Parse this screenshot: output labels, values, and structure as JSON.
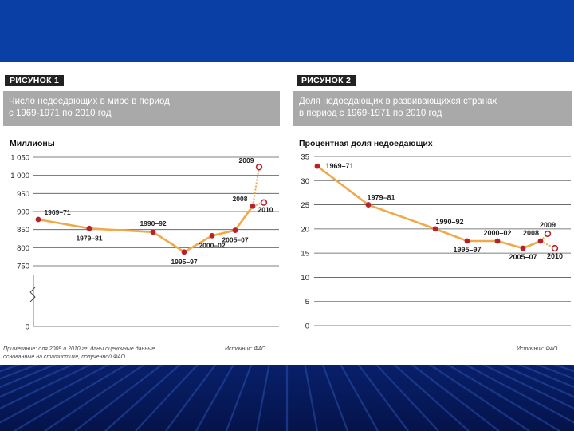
{
  "colors": {
    "top_band": "#0a3fa6",
    "bottom_band": "#05134a",
    "header_gray": "#a9a9a9",
    "line": "#f0a94a",
    "marker": "#b8202c",
    "grid": "#555555"
  },
  "figure1": {
    "label": "РИСУНОК 1",
    "title_line1": "Число недоедающих в мире в период",
    "title_line2": "с 1969-1971 по 2010 год",
    "note_line1": "Примечание: для 2009 и 2010 гг. даны оценочные данные",
    "note_line2": "основанные на статистике, полученной ФАО.",
    "source": "Источник: ФАО."
  },
  "figure2": {
    "label": "РИСУНОК 2",
    "title_line1": "Доля недоедающих в развивающихся странах",
    "title_line2": "в период с 1969-1971 по 2010 год",
    "source": "Источник: ФАО."
  },
  "chart_data": [
    {
      "type": "line",
      "ylabel": "Миллионы",
      "y_ticks": [
        1050,
        1000,
        950,
        900,
        850,
        800,
        750,
        0
      ],
      "y_tick_labels": [
        "1 050",
        "1 000",
        "950",
        "900",
        "850",
        "800",
        "750",
        "0"
      ],
      "axis_break": true,
      "points": [
        {
          "label": "1969–71",
          "value": 878,
          "label_pos": "above"
        },
        {
          "label": "1979–81",
          "value": 853,
          "label_pos": "below"
        },
        {
          "label": "1990–92",
          "value": 843,
          "label_pos": "above"
        },
        {
          "label": "1995–97",
          "value": 788,
          "label_pos": "below"
        },
        {
          "label": "2000–02",
          "value": 833,
          "label_pos": "below"
        },
        {
          "label": "2005–07",
          "value": 848,
          "label_pos": "below"
        },
        {
          "label": "2008",
          "value": 915,
          "label_pos": "left"
        }
      ],
      "estimates": [
        {
          "label": "2009",
          "value": 1023
        },
        {
          "label": "2010",
          "value": 925
        }
      ]
    },
    {
      "type": "line",
      "ylabel": "Процентная доля недоедающих",
      "y_ticks": [
        35,
        30,
        25,
        20,
        15,
        10,
        5,
        0
      ],
      "ylim": [
        0,
        35
      ],
      "points": [
        {
          "label": "1969–71",
          "value": 33,
          "label_pos": "right"
        },
        {
          "label": "1979–81",
          "value": 25,
          "label_pos": "above"
        },
        {
          "label": "1990–92",
          "value": 20,
          "label_pos": "above"
        },
        {
          "label": "1995–97",
          "value": 17.5,
          "label_pos": "below"
        },
        {
          "label": "2000–02",
          "value": 17.5,
          "label_pos": "above"
        },
        {
          "label": "2005–07",
          "value": 16,
          "label_pos": "below"
        },
        {
          "label": "2008",
          "value": 17.5,
          "label_pos": "above"
        }
      ],
      "estimates": [
        {
          "label": "2009",
          "value": 19,
          "label_pos": "above"
        },
        {
          "label": "2010",
          "value": 16,
          "label_pos": "below"
        }
      ]
    }
  ]
}
